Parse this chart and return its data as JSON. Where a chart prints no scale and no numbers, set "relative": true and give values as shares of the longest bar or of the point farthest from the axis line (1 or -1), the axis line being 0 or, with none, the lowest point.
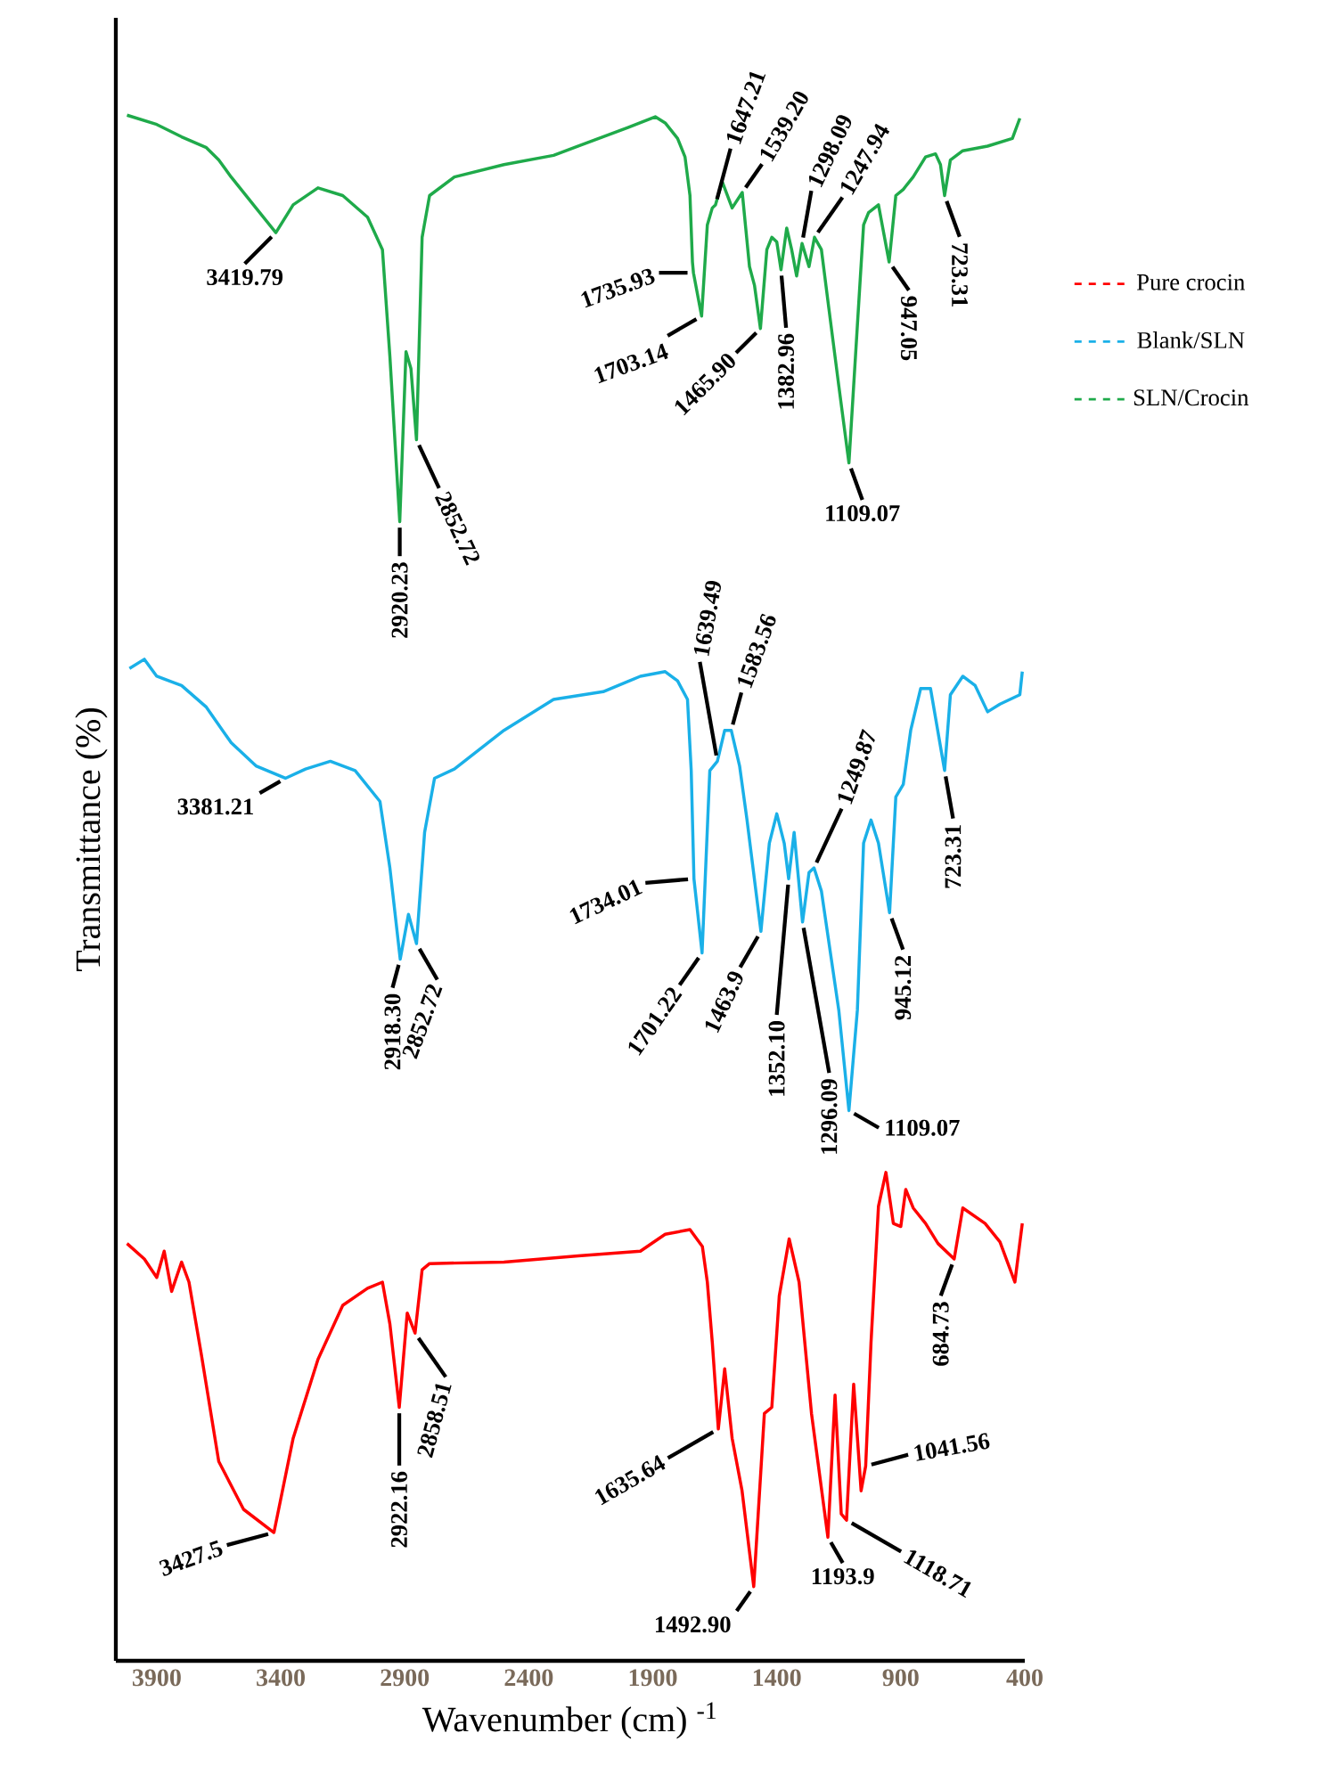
{
  "chart_data": {
    "type": "line",
    "relative": true,
    "xlabel": "Wavenumber (cm) $^{-1}$",
    "ylabel": "Transmittance (%)",
    "xlim": [
      4065,
      400
    ],
    "xticks": [
      3900,
      3400,
      2900,
      2400,
      1900,
      1400,
      900,
      400
    ],
    "legend": "right",
    "marker": "none",
    "series": [
      {
        "name": "Pure crocin",
        "color": "#ff0000",
        "x": [
          4020,
          3950,
          3900,
          3870,
          3840,
          3800,
          3770,
          3720,
          3650,
          3550,
          3427.5,
          3350,
          3250,
          3150,
          3050,
          2990,
          2960,
          2922.16,
          2890,
          2858.51,
          2830,
          2800,
          2500,
          2200,
          1950,
          1850,
          1750,
          1700,
          1680,
          1660,
          1635.64,
          1610,
          1580,
          1540,
          1492.9,
          1450,
          1420,
          1390,
          1350,
          1310,
          1260,
          1193.9,
          1165,
          1140,
          1118.71,
          1090,
          1060,
          1041.56,
          1020,
          990,
          960,
          930,
          900,
          880,
          850,
          800,
          750,
          684.73,
          650,
          560,
          500,
          440,
          410
        ],
        "values": [
          0.27,
          0.26,
          0.248,
          0.265,
          0.239,
          0.258,
          0.245,
          0.198,
          0.129,
          0.098,
          0.083,
          0.144,
          0.195,
          0.23,
          0.241,
          0.245,
          0.218,
          0.164,
          0.225,
          0.212,
          0.253,
          0.257,
          0.258,
          0.262,
          0.265,
          0.276,
          0.279,
          0.268,
          0.245,
          0.206,
          0.15,
          0.189,
          0.144,
          0.11,
          0.048,
          0.16,
          0.164,
          0.236,
          0.273,
          0.245,
          0.16,
          0.08,
          0.172,
          0.095,
          0.091,
          0.179,
          0.11,
          0.126,
          0.206,
          0.294,
          0.316,
          0.283,
          0.281,
          0.305,
          0.293,
          0.283,
          0.27,
          0.26,
          0.293,
          0.283,
          0.271,
          0.245,
          0.283
        ]
      },
      {
        "name": "Blank/SLN",
        "color": "#1ab0e8",
        "x": [
          4010,
          3950,
          3900,
          3800,
          3700,
          3600,
          3500,
          3381.21,
          3300,
          3200,
          3100,
          3000,
          2960,
          2918.3,
          2885,
          2852.72,
          2820,
          2780,
          2700,
          2500,
          2300,
          2100,
          1950,
          1850,
          1800,
          1760,
          1745,
          1734.01,
          1701.22,
          1670,
          1639.49,
          1610,
          1583.56,
          1550,
          1520,
          1463.9,
          1430,
          1400,
          1370,
          1352.1,
          1330,
          1296.09,
          1270,
          1249.87,
          1220,
          1150,
          1109.07,
          1075,
          1050,
          1020,
          990,
          945.12,
          920,
          890,
          860,
          820,
          780,
          723.31,
          700,
          650,
          600,
          550,
          500,
          420,
          410
        ],
        "values": [
          0.642,
          0.648,
          0.637,
          0.631,
          0.617,
          0.594,
          0.579,
          0.571,
          0.577,
          0.582,
          0.576,
          0.556,
          0.513,
          0.454,
          0.483,
          0.464,
          0.536,
          0.571,
          0.577,
          0.602,
          0.622,
          0.627,
          0.637,
          0.64,
          0.634,
          0.622,
          0.576,
          0.506,
          0.458,
          0.576,
          0.582,
          0.602,
          0.602,
          0.579,
          0.544,
          0.472,
          0.529,
          0.548,
          0.529,
          0.506,
          0.536,
          0.478,
          0.51,
          0.513,
          0.498,
          0.421,
          0.356,
          0.421,
          0.529,
          0.544,
          0.529,
          0.484,
          0.559,
          0.567,
          0.602,
          0.629,
          0.629,
          0.576,
          0.625,
          0.637,
          0.631,
          0.614,
          0.619,
          0.625,
          0.64
        ]
      },
      {
        "name": "SLN/Crocin",
        "color": "#1faa4a",
        "x": [
          4020,
          3900,
          3800,
          3700,
          3650,
          3600,
          3500,
          3419.79,
          3350,
          3250,
          3150,
          3050,
          2990,
          2960,
          2920.23,
          2895,
          2875,
          2852.72,
          2830,
          2800,
          2700,
          2500,
          2300,
          2200,
          2000,
          1890,
          1850,
          1800,
          1770,
          1750,
          1740,
          1735.93,
          1703.14,
          1680,
          1660,
          1647.21,
          1620,
          1580,
          1539.2,
          1510,
          1490,
          1465.9,
          1440,
          1420,
          1400,
          1382.96,
          1360,
          1340,
          1320,
          1298.09,
          1270,
          1247.94,
          1220,
          1190,
          1150,
          1109.07,
          1075,
          1050,
          1030,
          990,
          947.05,
          920,
          890,
          850,
          800,
          760,
          740,
          723.31,
          700,
          650,
          550,
          450,
          420
        ],
        "values": [
          1.0,
          0.994,
          0.986,
          0.979,
          0.971,
          0.96,
          0.94,
          0.924,
          0.942,
          0.953,
          0.948,
          0.934,
          0.913,
          0.844,
          0.737,
          0.847,
          0.836,
          0.79,
          0.921,
          0.948,
          0.96,
          0.968,
          0.974,
          0.98,
          0.992,
          0.999,
          0.995,
          0.985,
          0.973,
          0.948,
          0.905,
          0.898,
          0.87,
          0.929,
          0.94,
          0.942,
          0.957,
          0.94,
          0.95,
          0.902,
          0.89,
          0.862,
          0.913,
          0.921,
          0.918,
          0.9,
          0.927,
          0.913,
          0.896,
          0.917,
          0.902,
          0.921,
          0.913,
          0.875,
          0.825,
          0.775,
          0.864,
          0.929,
          0.937,
          0.942,
          0.905,
          0.948,
          0.952,
          0.96,
          0.973,
          0.975,
          0.968,
          0.948,
          0.971,
          0.977,
          0.98,
          0.985,
          0.998
        ]
      }
    ],
    "annotations": [
      {
        "text": "3419.79",
        "x": 3419.79,
        "y": 0.924
      },
      {
        "text": "2920.23",
        "x": 2920.23,
        "y": 0.737
      },
      {
        "text": "2852.72",
        "x": 2852.72,
        "y": 0.79
      },
      {
        "text": "1735.93",
        "x": 1735.93,
        "y": 0.898
      },
      {
        "text": "1703.14",
        "x": 1703.14,
        "y": 0.87
      },
      {
        "text": "1647.21",
        "x": 1647.21,
        "y": 0.942
      },
      {
        "text": "1539.20",
        "x": 1539.2,
        "y": 0.95
      },
      {
        "text": "1465.90",
        "x": 1465.9,
        "y": 0.862
      },
      {
        "text": "1382.96",
        "x": 1382.96,
        "y": 0.9
      },
      {
        "text": "1298.09",
        "x": 1298.09,
        "y": 0.917
      },
      {
        "text": "1247.94",
        "x": 1247.94,
        "y": 0.921
      },
      {
        "text": "1109.07",
        "x": 1109.07,
        "y": 0.775
      },
      {
        "text": "947.05",
        "x": 947.05,
        "y": 0.905
      },
      {
        "text": "723.31",
        "x": 723.31,
        "y": 0.948
      },
      {
        "text": "3381.21",
        "x": 3381.21,
        "y": 0.571
      },
      {
        "text": "2918.30",
        "x": 2918.3,
        "y": 0.454
      },
      {
        "text": "2852.72",
        "x": 2852.72,
        "y": 0.464
      },
      {
        "text": "1734.01",
        "x": 1734.01,
        "y": 0.506
      },
      {
        "text": "1701.22",
        "x": 1701.22,
        "y": 0.458
      },
      {
        "text": "1639.49",
        "x": 1639.49,
        "y": 0.582
      },
      {
        "text": "1583.56",
        "x": 1583.56,
        "y": 0.602
      },
      {
        "text": "1463.9",
        "x": 1463.9,
        "y": 0.472
      },
      {
        "text": "1352.10",
        "x": 1352.1,
        "y": 0.506
      },
      {
        "text": "1296.09",
        "x": 1296.09,
        "y": 0.478
      },
      {
        "text": "1249.87",
        "x": 1249.87,
        "y": 0.513
      },
      {
        "text": "1109.07",
        "x": 1109.07,
        "y": 0.356
      },
      {
        "text": "945.12",
        "x": 945.12,
        "y": 0.484
      },
      {
        "text": "723.31",
        "x": 723.31,
        "y": 0.576
      },
      {
        "text": "3427.5",
        "x": 3427.5,
        "y": 0.083
      },
      {
        "text": "2922.16",
        "x": 2922.16,
        "y": 0.164
      },
      {
        "text": "2858.51",
        "x": 2858.51,
        "y": 0.212
      },
      {
        "text": "1635.64",
        "x": 1635.64,
        "y": 0.15
      },
      {
        "text": "1492.90",
        "x": 1492.9,
        "y": 0.048
      },
      {
        "text": "1193.9",
        "x": 1193.9,
        "y": 0.08
      },
      {
        "text": "1118.71",
        "x": 1118.71,
        "y": 0.091
      },
      {
        "text": "1041.56",
        "x": 1041.56,
        "y": 0.126
      },
      {
        "text": "684.73",
        "x": 684.73,
        "y": 0.26
      }
    ]
  }
}
